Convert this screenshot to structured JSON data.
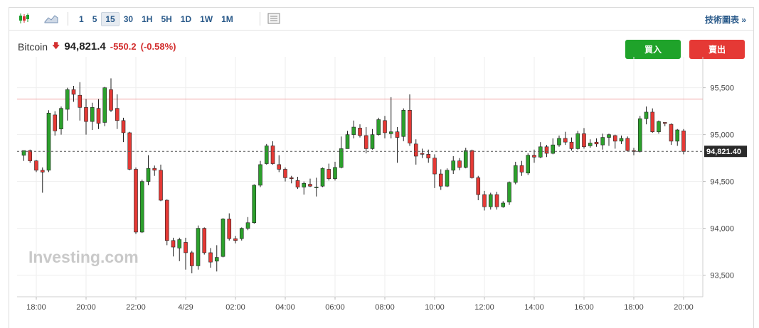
{
  "toolbar": {
    "icons": [
      "candlestick-icon",
      "area-chart-icon",
      "settings-panel-icon"
    ],
    "intervals": [
      "1",
      "5",
      "15",
      "30",
      "1H",
      "5H",
      "1D",
      "1W",
      "1M"
    ],
    "active_interval": "15",
    "tech_link": "技術圖表 »"
  },
  "quote": {
    "name": "Bitcoin",
    "direction_icon": "down-arrow-icon",
    "price": "94,821.4",
    "change": "-550.2",
    "change_pct": "(-0.58%)"
  },
  "buttons": {
    "buy": "買入",
    "sell": "賣出"
  },
  "watermark": "Investing.com",
  "colors": {
    "up": "#2ca02c",
    "down": "#e53935",
    "accent": "#2a5a8a",
    "current_price_line": "#555555",
    "reference_line": "#f0a0a0"
  },
  "chart_data": {
    "type": "candlestick",
    "y_ticks": [
      "95,500",
      "95,000",
      "94,500",
      "94,000",
      "93,500"
    ],
    "y_tick_values": [
      95500,
      95000,
      94500,
      94000,
      93500
    ],
    "ylim": [
      93270,
      95800
    ],
    "x_ticks": [
      "18:00",
      "20:00",
      "22:00",
      "4/29",
      "02:00",
      "04:00",
      "06:00",
      "08:00",
      "10:00",
      "12:00",
      "14:00",
      "16:00",
      "18:00",
      "20:00"
    ],
    "x_tick_index": [
      2,
      10,
      18,
      26,
      34,
      42,
      50,
      58,
      66,
      74,
      82,
      90,
      98,
      106
    ],
    "current_price": 94821.4,
    "current_price_label": "94,821.40",
    "reference_level": 95380,
    "candles": [
      [
        94780,
        94830,
        94830,
        94720
      ],
      [
        94830,
        94720,
        94840,
        94700
      ],
      [
        94720,
        94620,
        94730,
        94600
      ],
      [
        94620,
        94600,
        94650,
        94380
      ],
      [
        94620,
        95230,
        95260,
        94600
      ],
      [
        95210,
        95040,
        95250,
        94990
      ],
      [
        95060,
        95280,
        95300,
        95000
      ],
      [
        95270,
        95480,
        95500,
        95150
      ],
      [
        95480,
        95430,
        95520,
        95350
      ],
      [
        95420,
        95290,
        95560,
        95150
      ],
      [
        95290,
        95140,
        95380,
        95000
      ],
      [
        95140,
        95290,
        95340,
        95050
      ],
      [
        95280,
        95120,
        95380,
        95060
      ],
      [
        95130,
        95500,
        95510,
        95090
      ],
      [
        95480,
        95260,
        95600,
        95240
      ],
      [
        95280,
        95150,
        95430,
        95060
      ],
      [
        95150,
        95020,
        95180,
        94920
      ],
      [
        95020,
        94630,
        95030,
        94620
      ],
      [
        94630,
        93960,
        94650,
        93940
      ],
      [
        93960,
        94500,
        94520,
        93950
      ],
      [
        94500,
        94640,
        94780,
        94460
      ],
      [
        94640,
        94620,
        94670,
        94560
      ],
      [
        94620,
        94300,
        94680,
        94290
      ],
      [
        94300,
        93870,
        94310,
        93820
      ],
      [
        93870,
        93800,
        93900,
        93700
      ],
      [
        93790,
        93880,
        93900,
        93650
      ],
      [
        93850,
        93740,
        93900,
        93560
      ],
      [
        93740,
        93600,
        93760,
        93520
      ],
      [
        93600,
        94000,
        94030,
        93560
      ],
      [
        94000,
        93740,
        94010,
        93720
      ],
      [
        93740,
        93640,
        93790,
        93580
      ],
      [
        93650,
        93690,
        93820,
        93540
      ],
      [
        93700,
        94100,
        94110,
        93690
      ],
      [
        94100,
        93890,
        94160,
        93870
      ],
      [
        93890,
        93870,
        93920,
        93840
      ],
      [
        93890,
        94000,
        94010,
        93870
      ],
      [
        94000,
        94060,
        94120,
        93980
      ],
      [
        94060,
        94460,
        94470,
        94050
      ],
      [
        94460,
        94680,
        94720,
        94440
      ],
      [
        94690,
        94880,
        94900,
        94680
      ],
      [
        94880,
        94690,
        94930,
        94680
      ],
      [
        94680,
        94630,
        94780,
        94600
      ],
      [
        94630,
        94540,
        94650,
        94500
      ],
      [
        94540,
        94530,
        94560,
        94480
      ],
      [
        94510,
        94440,
        94550,
        94420
      ],
      [
        94440,
        94480,
        94500,
        94360
      ],
      [
        94470,
        94450,
        94530,
        94440
      ],
      [
        94440,
        94440,
        94540,
        94340
      ],
      [
        94450,
        94640,
        94650,
        94440
      ],
      [
        94630,
        94530,
        94690,
        94510
      ],
      [
        94530,
        94650,
        94710,
        94510
      ],
      [
        94650,
        94850,
        94980,
        94640
      ],
      [
        94850,
        95000,
        95040,
        94850
      ],
      [
        95000,
        95080,
        95150,
        94960
      ],
      [
        95070,
        94990,
        95110,
        94970
      ],
      [
        94990,
        94850,
        95080,
        94800
      ],
      [
        94850,
        95000,
        95060,
        94840
      ],
      [
        95000,
        95160,
        95180,
        94990
      ],
      [
        95150,
        95020,
        95200,
        94960
      ],
      [
        95010,
        95030,
        95400,
        94960
      ],
      [
        95030,
        94970,
        95080,
        94700
      ],
      [
        94980,
        95260,
        95280,
        94930
      ],
      [
        95260,
        94910,
        95430,
        94880
      ],
      [
        94900,
        94770,
        94950,
        94680
      ],
      [
        94800,
        94790,
        94850,
        94750
      ],
      [
        94790,
        94750,
        94840,
        94700
      ],
      [
        94750,
        94580,
        94790,
        94430
      ],
      [
        94580,
        94450,
        94630,
        94410
      ],
      [
        94450,
        94620,
        94640,
        94440
      ],
      [
        94620,
        94720,
        94770,
        94580
      ],
      [
        94720,
        94650,
        94750,
        94620
      ],
      [
        94650,
        94830,
        94860,
        94640
      ],
      [
        94830,
        94540,
        94840,
        94530
      ],
      [
        94540,
        94360,
        94560,
        94300
      ],
      [
        94360,
        94230,
        94400,
        94190
      ],
      [
        94230,
        94360,
        94380,
        94200
      ],
      [
        94360,
        94230,
        94390,
        94200
      ],
      [
        94230,
        94270,
        94290,
        94220
      ],
      [
        94280,
        94490,
        94500,
        94250
      ],
      [
        94490,
        94670,
        94710,
        94470
      ],
      [
        94670,
        94600,
        94720,
        94560
      ],
      [
        94590,
        94780,
        94800,
        94570
      ],
      [
        94780,
        94760,
        94840,
        94700
      ],
      [
        94760,
        94870,
        94920,
        94750
      ],
      [
        94870,
        94800,
        94890,
        94760
      ],
      [
        94800,
        94890,
        94960,
        94790
      ],
      [
        94890,
        94960,
        94990,
        94870
      ],
      [
        94960,
        94920,
        95030,
        94890
      ],
      [
        94920,
        94850,
        94970,
        94830
      ],
      [
        94850,
        95010,
        95040,
        94840
      ],
      [
        95010,
        94870,
        95070,
        94850
      ],
      [
        94880,
        94910,
        94950,
        94860
      ],
      [
        94920,
        94900,
        94960,
        94870
      ],
      [
        94890,
        94970,
        95010,
        94840
      ],
      [
        94970,
        95000,
        95010,
        94880
      ],
      [
        94990,
        94930,
        95000,
        94850
      ],
      [
        94930,
        94960,
        94990,
        94900
      ],
      [
        94960,
        94830,
        94980,
        94820
      ],
      [
        94830,
        94820,
        94860,
        94780
      ],
      [
        94820,
        95170,
        95200,
        94810
      ],
      [
        95170,
        95240,
        95300,
        95110
      ],
      [
        95240,
        95030,
        95280,
        95020
      ],
      [
        95030,
        95140,
        95150,
        95010
      ],
      [
        95130,
        95120,
        95130,
        95090
      ],
      [
        95110,
        94930,
        95120,
        94890
      ],
      [
        94930,
        95050,
        95060,
        94880
      ],
      [
        95040,
        94820,
        95060,
        94790
      ]
    ]
  }
}
